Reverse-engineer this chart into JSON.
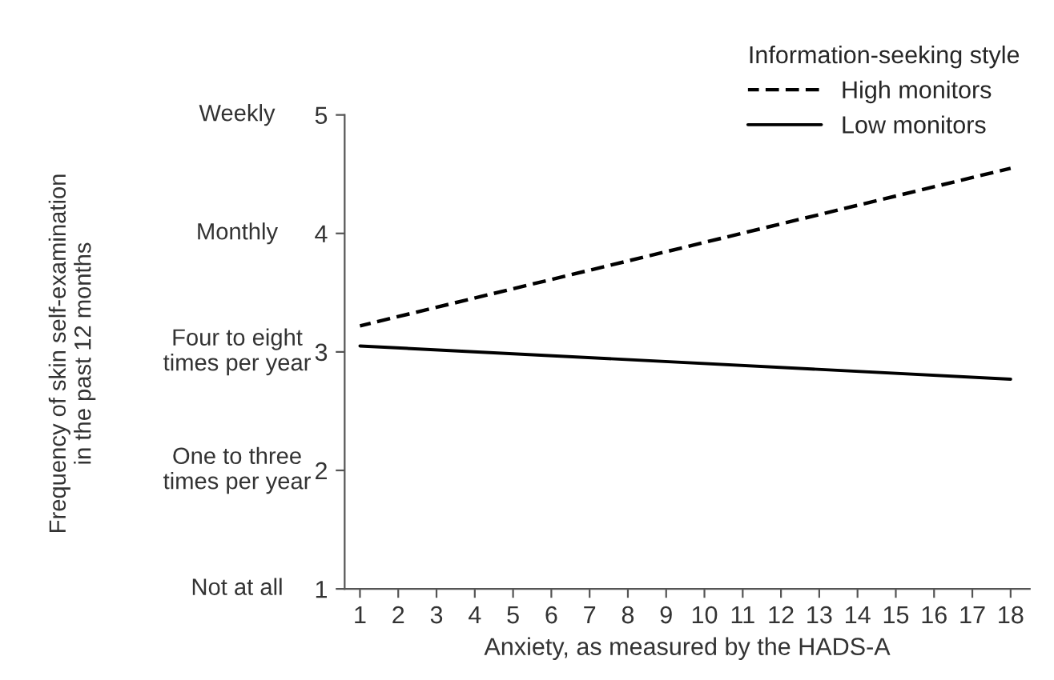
{
  "chart_data": {
    "type": "line",
    "xlabel": "Anxiety, as measured by the HADS-A",
    "legend_title": "Information-seeking style",
    "x": [
      1,
      18
    ],
    "series": [
      {
        "name": "High monitors",
        "color": "#000000",
        "values": [
          3.22,
          4.55
        ],
        "line_style": "dashed"
      },
      {
        "name": "Low monitors",
        "color": "#000000",
        "values": [
          3.05,
          2.77
        ],
        "line_style": "solid"
      }
    ],
    "xlim": [
      0.6,
      18.5
    ],
    "xticks": [
      1,
      2,
      3,
      4,
      5,
      6,
      7,
      8,
      9,
      10,
      11,
      12,
      13,
      14,
      15,
      16,
      17,
      18
    ],
    "ylim": [
      1,
      5
    ],
    "yticks": [
      1,
      2,
      3,
      4,
      5
    ],
    "annotations": [
      "Not at all",
      "One to three\ntimes per year",
      "Four to eight\ntimes per year",
      "Monthly",
      "Weekly",
      "Frequency of skin self-examination\nin the past 12 months"
    ],
    "grid": false,
    "legend": "top right",
    "marker": "none"
  }
}
